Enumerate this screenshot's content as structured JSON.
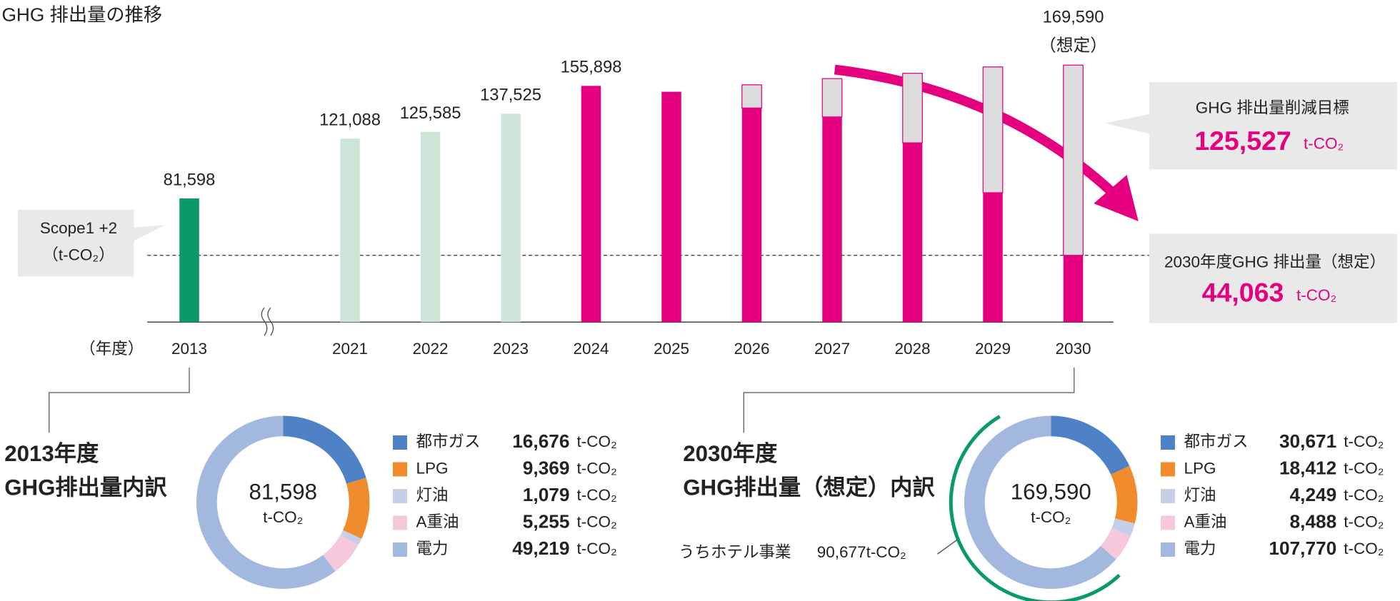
{
  "chart_data": [
    {
      "type": "stacked-bar",
      "title": "GHG 排出量の推移",
      "categories": [
        "2013",
        "2021",
        "2022",
        "2023",
        "2024",
        "2025",
        "2026",
        "2027",
        "2028",
        "2029",
        "2030"
      ],
      "axis_label": "（年度）",
      "series": [
        {
          "name": "GHG 排出量",
          "colors": [
            "#0a9a68",
            "#cde5d6",
            "#cde5d6",
            "#cde5d6",
            "#e4007f",
            "#e4007f",
            "#e4007f",
            "#e4007f",
            "#e4007f",
            "#e4007f",
            "#e4007f"
          ],
          "values": [
            81598,
            121088,
            125585,
            137525,
            155898,
            152000,
            141300,
            135400,
            118300,
            85400,
            44063
          ]
        },
        {
          "name": "GHG 排出量削減目標",
          "color": "#dcdcdc",
          "stroke": "#e4007f",
          "values": [
            null,
            null,
            null,
            null,
            null,
            null,
            15300,
            25300,
            45900,
            83000,
            125527
          ]
        }
      ],
      "total_labels": [
        "81,598",
        "121,088",
        "125,585",
        "137,525",
        "155,898",
        null,
        null,
        null,
        null,
        null,
        "169,590"
      ],
      "total_note": "（想定）",
      "ylim": [
        0,
        169590
      ],
      "unit_box": [
        "Scope1 +2",
        "（t-CO₂）"
      ],
      "target_box": {
        "title": "GHG 排出量削減目標",
        "value": "125,527",
        "unit": "t-CO₂"
      },
      "forecast_box": {
        "title": "2030年度GHG 排出量（想定）",
        "value": "44,063",
        "unit": "t-CO₂"
      }
    },
    {
      "type": "donut",
      "title": [
        "2013年度",
        "GHG排出量内訳"
      ],
      "categories": [
        "都市ガス",
        "LPG",
        "灯油",
        "A重油",
        "電力"
      ],
      "colors": [
        "#4f81c7",
        "#f08c2e",
        "#c5cfe8",
        "#f5c8dc",
        "#a3b8df"
      ],
      "values": [
        16676,
        9369,
        1079,
        5255,
        49219
      ],
      "value_labels": [
        "16,676",
        "9,369",
        "1,079",
        "5,255",
        "49,219"
      ],
      "unit": "t-CO₂",
      "center_label": "81,598",
      "center_unit": "t-CO₂"
    },
    {
      "type": "donut",
      "title": [
        "2030年度",
        "GHG排出量（想定）内訳"
      ],
      "categories": [
        "都市ガス",
        "LPG",
        "灯油",
        "A重油",
        "電力"
      ],
      "colors": [
        "#4f81c7",
        "#f08c2e",
        "#c5cfe8",
        "#f5c8dc",
        "#a3b8df"
      ],
      "values": [
        30671,
        18412,
        4249,
        8488,
        107770
      ],
      "value_labels": [
        "30,671",
        "18,412",
        "4,249",
        "8,488",
        "107,770"
      ],
      "unit": "t-CO₂",
      "center_label": "169,590",
      "center_unit": "t-CO₂",
      "subset": {
        "label": "うちホテル事業",
        "value": 90677,
        "value_label": "90,677t-CO₂",
        "color": "#0a9a68"
      }
    }
  ]
}
